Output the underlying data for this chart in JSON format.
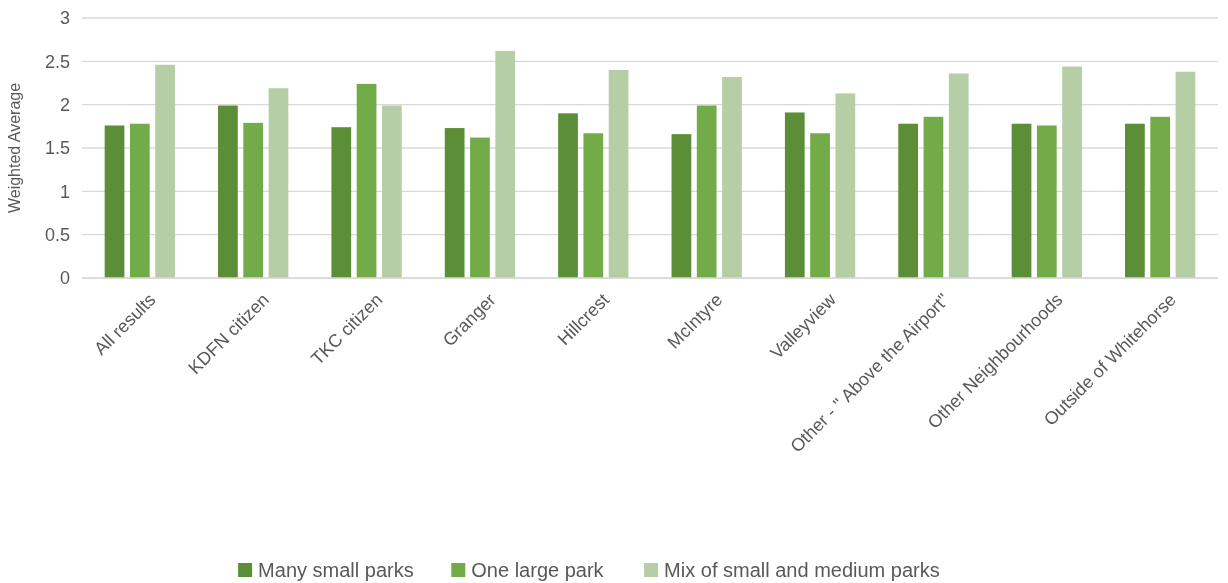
{
  "chart_data": {
    "type": "bar",
    "ylabel": "Weighted Average",
    "categories": [
      "All results",
      "KDFN citizen",
      "TKC citizen",
      "Granger",
      "Hillcrest",
      "McIntyre",
      "Valleyview",
      "Other - \" Above the Airport\"",
      "Other Neighbourhoods",
      "Outside of Whitehorse"
    ],
    "series": [
      {
        "name": "Many small parks",
        "color": "#5b8e37",
        "values": [
          1.76,
          1.99,
          1.74,
          1.73,
          1.9,
          1.66,
          1.91,
          1.78,
          1.78,
          1.78
        ]
      },
      {
        "name": "One large park",
        "color": "#72ab48",
        "values": [
          1.78,
          1.79,
          2.24,
          1.62,
          1.67,
          1.99,
          1.67,
          1.86,
          1.76,
          1.86
        ]
      },
      {
        "name": "Mix of small and medium parks",
        "color": "#b5cea6",
        "values": [
          2.46,
          2.19,
          1.99,
          2.62,
          2.4,
          2.32,
          2.13,
          2.36,
          2.44,
          2.38
        ]
      }
    ],
    "ylim": [
      0,
      3
    ],
    "yticks": [
      0,
      0.5,
      1,
      1.5,
      2,
      2.5,
      3
    ],
    "grid": "y",
    "legend": "bottom"
  }
}
